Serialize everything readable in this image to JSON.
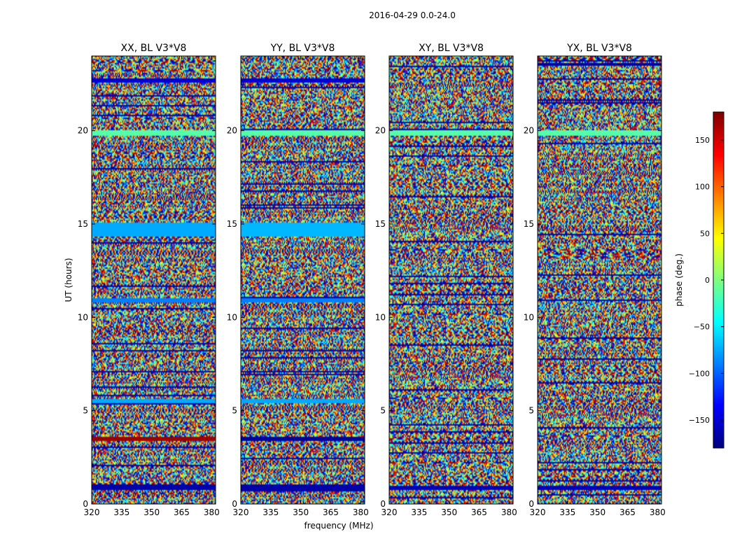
{
  "figure_title": "2016-04-29 0.0-24.0",
  "chart_data": {
    "type": "heatmap",
    "title": "2016-04-29 0.0-24.0",
    "xlabel": "frequency (MHz)",
    "ylabel": "UT (hours)",
    "xlim": [
      320,
      382
    ],
    "ylim": [
      0,
      24
    ],
    "x_ticks": [
      320,
      335,
      350,
      365,
      380
    ],
    "y_ticks": [
      0,
      5,
      10,
      15,
      20
    ],
    "colormap": "jet",
    "colorbar": {
      "label": "phase (deg.)",
      "range": [
        -180,
        180
      ],
      "ticks": [
        150,
        100,
        50,
        0,
        -50,
        -100,
        -150
      ],
      "tick_labels": [
        "150",
        "100",
        "50",
        "0",
        "−50",
        "−100",
        "−150"
      ]
    },
    "panels": [
      {
        "title": "XX, BL V3*V8",
        "uniform_bands": [
          {
            "t0": 0.75,
            "t1": 1.05,
            "phase": -165
          },
          {
            "t0": 3.35,
            "t1": 3.6,
            "phase": 170
          },
          {
            "t0": 5.4,
            "t1": 5.6,
            "phase": -75
          },
          {
            "t0": 10.8,
            "t1": 11.0,
            "phase": -90
          },
          {
            "t0": 14.3,
            "t1": 15.05,
            "phase": -75
          },
          {
            "t0": 19.75,
            "t1": 20.05,
            "phase": -15
          },
          {
            "t0": 22.6,
            "t1": 22.8,
            "phase": -150
          }
        ]
      },
      {
        "title": "YY, BL V3*V8",
        "uniform_bands": [
          {
            "t0": 0.75,
            "t1": 1.05,
            "phase": -165
          },
          {
            "t0": 3.35,
            "t1": 3.6,
            "phase": -170
          },
          {
            "t0": 5.4,
            "t1": 5.6,
            "phase": -75
          },
          {
            "t0": 10.8,
            "t1": 11.0,
            "phase": -90
          },
          {
            "t0": 14.3,
            "t1": 15.05,
            "phase": -70
          },
          {
            "t0": 19.75,
            "t1": 20.05,
            "phase": -15
          },
          {
            "t0": 22.6,
            "t1": 22.8,
            "phase": -150
          }
        ]
      },
      {
        "title": "XY, BL V3*V8",
        "uniform_bands": [
          {
            "t0": 0.75,
            "t1": 0.95,
            "phase": -160
          },
          {
            "t0": 19.75,
            "t1": 20.05,
            "phase": -15
          }
        ]
      },
      {
        "title": "YX, BL V3*V8",
        "uniform_bands": [
          {
            "t0": 0.75,
            "t1": 0.95,
            "phase": -160
          },
          {
            "t0": 19.75,
            "t1": 20.05,
            "phase": -15
          }
        ]
      }
    ]
  }
}
